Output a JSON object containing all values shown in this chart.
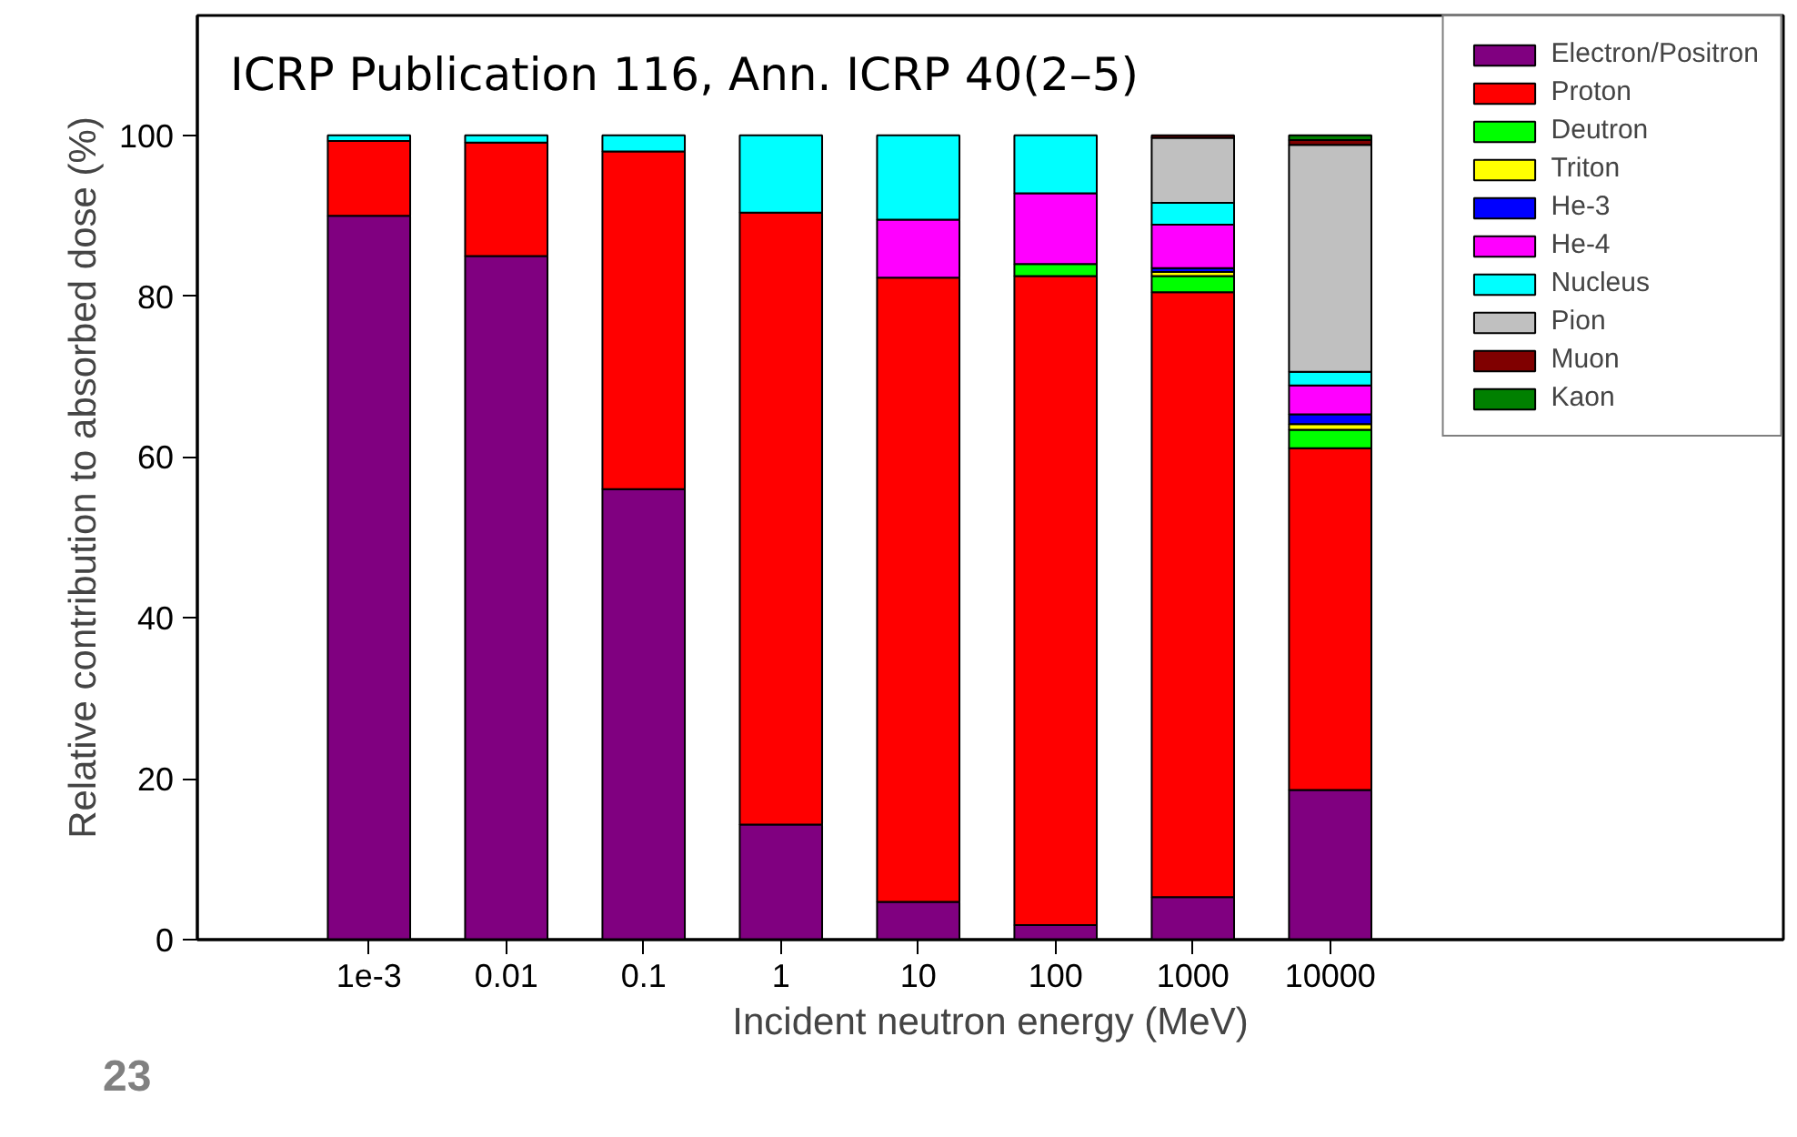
{
  "chart_data": {
    "type": "bar",
    "stacked": true,
    "title": "ICRP Publication 116, Ann. ICRP 40(2–5)",
    "xlabel": "Incident neutron energy (MeV)",
    "ylabel": "Relative contribution to absorbed dose (%)",
    "categories": [
      "1e-3",
      "0.01",
      "0.1",
      "1",
      "10",
      "100",
      "1000",
      "10000"
    ],
    "ylim": [
      0,
      114.9
    ],
    "yticks": [
      0,
      20,
      40,
      60,
      80,
      100
    ],
    "grid": false,
    "legend": "top right",
    "annotations": [
      "23"
    ],
    "series": [
      {
        "name": "Electron/Positron",
        "color": "#800080",
        "values": [
          90,
          85,
          56,
          14.3,
          4.7,
          1.8,
          5.3,
          18.6
        ]
      },
      {
        "name": "Proton",
        "color": "#ff0000",
        "values": [
          9.3,
          14.1,
          42,
          76.1,
          77.6,
          80.7,
          75.2,
          42.5
        ]
      },
      {
        "name": "Deutron",
        "color": "#00ff00",
        "values": [
          null,
          null,
          null,
          null,
          null,
          1.5,
          2.0,
          2.3
        ]
      },
      {
        "name": "Triton",
        "color": "#ffff00",
        "values": [
          null,
          null,
          null,
          null,
          null,
          null,
          0.5,
          0.7
        ]
      },
      {
        "name": "He-3",
        "color": "#0000ff",
        "values": [
          null,
          null,
          null,
          null,
          null,
          null,
          0.5,
          1.2
        ]
      },
      {
        "name": "He-4",
        "color": "#ff00ff",
        "values": [
          null,
          null,
          null,
          null,
          7.2,
          8.8,
          5.4,
          3.6
        ]
      },
      {
        "name": "Nucleus",
        "color": "#00ffff",
        "values": [
          0.7,
          0.9,
          2,
          9.6,
          10.5,
          7.2,
          2.7,
          1.7
        ]
      },
      {
        "name": "Pion",
        "color": "#c0c0c0",
        "values": [
          null,
          null,
          null,
          null,
          null,
          null,
          8.1,
          28.2
        ]
      },
      {
        "name": "Muon",
        "color": "#800000",
        "values": [
          null,
          null,
          null,
          null,
          null,
          null,
          0.3,
          0.6
        ]
      },
      {
        "name": "Kaon",
        "color": "#008000",
        "values": [
          null,
          null,
          null,
          null,
          null,
          null,
          null,
          0.6
        ]
      }
    ]
  }
}
